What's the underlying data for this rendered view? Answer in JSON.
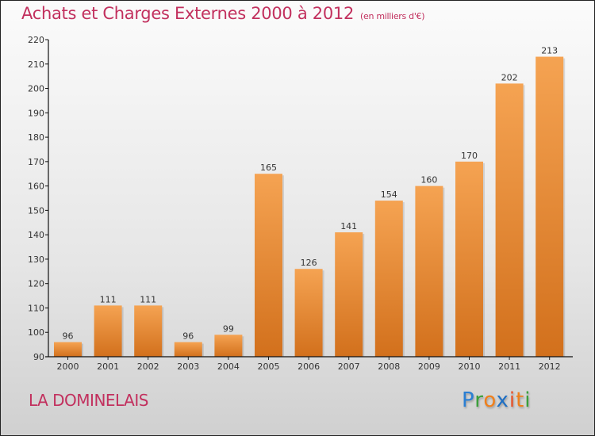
{
  "chart_data": {
    "type": "bar",
    "title": "Achats et Charges Externes 2000 à 2012",
    "subtitle": "(en milliers d'€)",
    "xlabel": "",
    "ylabel": "",
    "categories": [
      "2000",
      "2001",
      "2002",
      "2003",
      "2004",
      "2005",
      "2006",
      "2007",
      "2008",
      "2009",
      "2010",
      "2011",
      "2012"
    ],
    "values": [
      96,
      111,
      111,
      96,
      99,
      165,
      126,
      141,
      154,
      160,
      170,
      202,
      213
    ],
    "ylim": [
      90,
      220
    ],
    "yticks": [
      90,
      100,
      110,
      120,
      130,
      140,
      150,
      160,
      170,
      180,
      190,
      200,
      210,
      220
    ],
    "grid": false,
    "legend": "none",
    "bar_color_top": "#f5a352",
    "bar_color_bottom": "#d2701c"
  },
  "footer": {
    "place": "LA DOMINELAIS",
    "logo_letters": [
      {
        "ch": "P",
        "color": "#2a7fd4"
      },
      {
        "ch": "r",
        "color": "#3aa03a"
      },
      {
        "ch": "o",
        "color": "#f07f1a"
      },
      {
        "ch": "x",
        "color": "#1e6fc4"
      },
      {
        "ch": "i",
        "color": "#e8532a"
      },
      {
        "ch": "t",
        "color": "#f07f1a"
      },
      {
        "ch": "i",
        "color": "#3aa03a"
      }
    ]
  }
}
